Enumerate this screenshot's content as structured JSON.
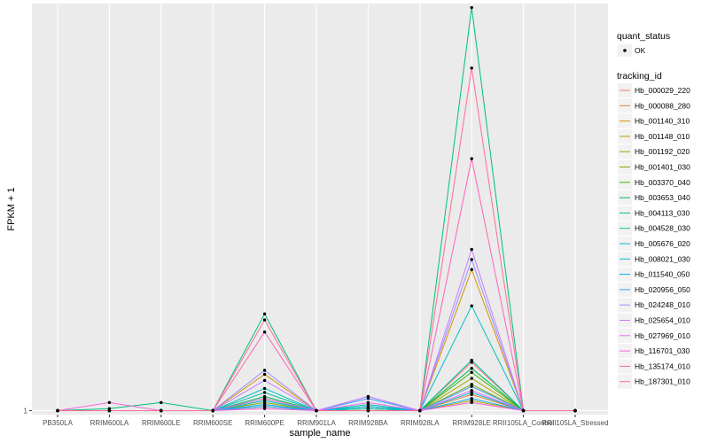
{
  "chart_data": {
    "type": "line",
    "title": "",
    "xlabel": "sample_name",
    "ylabel": "FPKM + 1",
    "categories": [
      "PB350LA",
      "RRIM600LA",
      "RRIM600LE",
      "RRIM600SE",
      "RRIM600PE",
      "RRIM901LA",
      "RRIM928BA",
      "RRIM928LA",
      "RRIM928LE",
      "RRII105LA_Control",
      "RRII105LA_Stressed"
    ],
    "y_ticks": [
      "1"
    ],
    "ylim": [
      0.8,
      21.2
    ],
    "grid": true,
    "legend_position": "right",
    "legend": {
      "quant_status_title": "quant_status",
      "quant_status_entries": [
        "OK"
      ],
      "tracking_title": "tracking_id"
    },
    "series": [
      {
        "name": "Hb_000029_220",
        "color": "#F8766D",
        "values": [
          1,
          1,
          1,
          1,
          1.3,
          1,
          1,
          1,
          3.4,
          1,
          1
        ]
      },
      {
        "name": "Hb_000088_280",
        "color": "#EA8331",
        "values": [
          1,
          1,
          1,
          1,
          1.2,
          1,
          1,
          1,
          1.8,
          1,
          1
        ]
      },
      {
        "name": "Hb_001140_310",
        "color": "#D89000",
        "values": [
          1,
          1,
          1,
          1,
          2.8,
          1,
          1.1,
          1,
          8.0,
          1,
          1
        ]
      },
      {
        "name": "Hb_001148_010",
        "color": "#C09B00",
        "values": [
          1,
          1,
          1,
          1,
          1.5,
          1,
          1,
          1,
          1.5,
          1,
          1
        ]
      },
      {
        "name": "Hb_001192_020",
        "color": "#A3A500",
        "values": [
          1,
          1,
          1,
          1,
          1.2,
          1,
          1,
          1,
          2.6,
          1,
          1
        ]
      },
      {
        "name": "Hb_001401_030",
        "color": "#7CAE00",
        "values": [
          1,
          1,
          1,
          1,
          1.4,
          1,
          1.2,
          1,
          2.3,
          1,
          1
        ]
      },
      {
        "name": "Hb_003370_040",
        "color": "#39B600",
        "values": [
          1,
          1,
          1,
          1,
          1.6,
          1,
          1.1,
          1,
          2.9,
          1,
          1
        ]
      },
      {
        "name": "Hb_003653_040",
        "color": "#00BB4E",
        "values": [
          1,
          1,
          1,
          1,
          1.7,
          1,
          1.2,
          1,
          3.1,
          1,
          1
        ]
      },
      {
        "name": "Hb_004113_030",
        "color": "#00BF7D",
        "values": [
          1,
          1.1,
          1.4,
          1,
          5.8,
          1,
          1,
          1,
          21.0,
          1,
          1
        ]
      },
      {
        "name": "Hb_004528_030",
        "color": "#00C1A3",
        "values": [
          1,
          1,
          1,
          1,
          1.9,
          1,
          1.3,
          1,
          3.5,
          1,
          1
        ]
      },
      {
        "name": "Hb_005676_020",
        "color": "#00BFC4",
        "values": [
          1,
          1,
          1,
          1,
          2.1,
          1,
          1.1,
          1,
          6.2,
          1,
          1
        ]
      },
      {
        "name": "Hb_008021_030",
        "color": "#00BAE0",
        "values": [
          1,
          1,
          1,
          1,
          1.5,
          1,
          1,
          1,
          1.9,
          1,
          1
        ]
      },
      {
        "name": "Hb_011540_050",
        "color": "#00B0F6",
        "values": [
          1,
          1,
          1,
          1,
          1.3,
          1,
          1.2,
          1,
          1.6,
          1,
          1
        ]
      },
      {
        "name": "Hb_020956_050",
        "color": "#35A2FF",
        "values": [
          1,
          1,
          1,
          1,
          1.2,
          1,
          1.6,
          1,
          2.2,
          1,
          1
        ]
      },
      {
        "name": "Hb_024248_010",
        "color": "#9590FF",
        "values": [
          1,
          1,
          1,
          1,
          3.0,
          1,
          1.7,
          1,
          8.5,
          1,
          1
        ]
      },
      {
        "name": "Hb_025654_010",
        "color": "#C77CFF",
        "values": [
          1,
          1,
          1,
          1,
          2.5,
          1,
          1.7,
          1,
          9.0,
          1,
          1
        ]
      },
      {
        "name": "Hb_027969_010",
        "color": "#E76BF3",
        "values": [
          1,
          1,
          1,
          1,
          1.6,
          1,
          1.4,
          1,
          2.0,
          1,
          1
        ]
      },
      {
        "name": "Hb_116701_030",
        "color": "#FA62DB",
        "values": [
          1,
          1.4,
          1,
          1,
          1.1,
          1,
          1,
          1,
          1.4,
          1,
          1
        ]
      },
      {
        "name": "Hb_135174_010",
        "color": "#FF62BC",
        "values": [
          1,
          1,
          1,
          1,
          4.9,
          1,
          1,
          1,
          13.5,
          1,
          1
        ]
      },
      {
        "name": "Hb_187301_010",
        "color": "#FF6C91",
        "values": [
          1,
          1,
          1,
          1,
          5.5,
          1,
          1,
          1,
          18.0,
          1,
          1
        ]
      }
    ]
  }
}
